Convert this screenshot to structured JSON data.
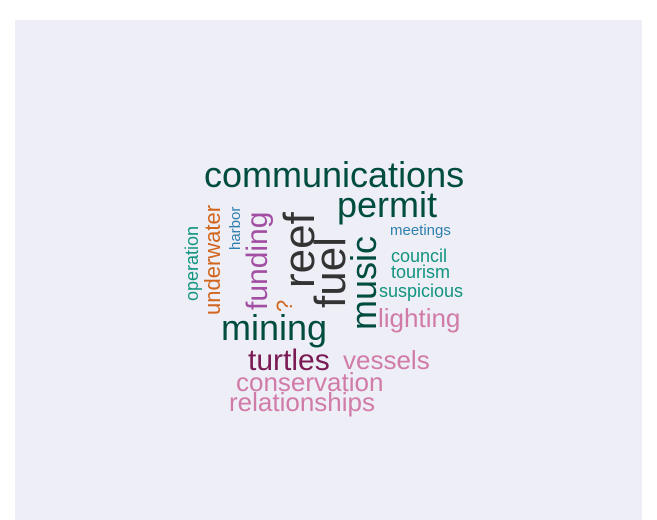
{
  "chart_data": {
    "type": "wordcloud",
    "title": "",
    "colors": {
      "dark_green": "#004d40",
      "charcoal": "#333333",
      "purple": "#a24fa3",
      "pink": "#d17ca8",
      "plum": "#7a1a54",
      "teal": "#119480",
      "orange": "#d2651c",
      "blue": "#2f7fae",
      "background": "#eeeef6"
    },
    "words": [
      {
        "text": "communications",
        "size": 36,
        "rotation": 0,
        "color": "#004d40"
      },
      {
        "text": "permit",
        "size": 36,
        "rotation": 0,
        "color": "#004d40"
      },
      {
        "text": "fuel",
        "size": 44,
        "rotation": -90,
        "color": "#333333"
      },
      {
        "text": "reef",
        "size": 44,
        "rotation": -90,
        "color": "#333333"
      },
      {
        "text": "music",
        "size": 36,
        "rotation": -90,
        "color": "#004d40"
      },
      {
        "text": "mining",
        "size": 36,
        "rotation": 0,
        "color": "#004d40"
      },
      {
        "text": "funding",
        "size": 30,
        "rotation": -90,
        "color": "#a24fa3"
      },
      {
        "text": "turtles",
        "size": 30,
        "rotation": 0,
        "color": "#7a1a54"
      },
      {
        "text": "underwater",
        "size": 22,
        "rotation": -90,
        "color": "#d2651c"
      },
      {
        "text": "lighting",
        "size": 26,
        "rotation": 0,
        "color": "#d17ca8"
      },
      {
        "text": "vessels",
        "size": 26,
        "rotation": 0,
        "color": "#d17ca8"
      },
      {
        "text": "conservation",
        "size": 26,
        "rotation": 0,
        "color": "#d17ca8"
      },
      {
        "text": "relationships",
        "size": 26,
        "rotation": 0,
        "color": "#d17ca8"
      },
      {
        "text": "operation",
        "size": 18,
        "rotation": -90,
        "color": "#119480"
      },
      {
        "text": "council",
        "size": 18,
        "rotation": 0,
        "color": "#119480"
      },
      {
        "text": "tourism",
        "size": 18,
        "rotation": 0,
        "color": "#119480"
      },
      {
        "text": "suspicious",
        "size": 18,
        "rotation": 0,
        "color": "#119480"
      },
      {
        "text": "harbor",
        "size": 15,
        "rotation": -90,
        "color": "#2f7fae"
      },
      {
        "text": "meetings",
        "size": 15,
        "rotation": 0,
        "color": "#2f7fae"
      },
      {
        "text": "?",
        "size": 22,
        "rotation": -90,
        "color": "#d2651c"
      }
    ]
  }
}
